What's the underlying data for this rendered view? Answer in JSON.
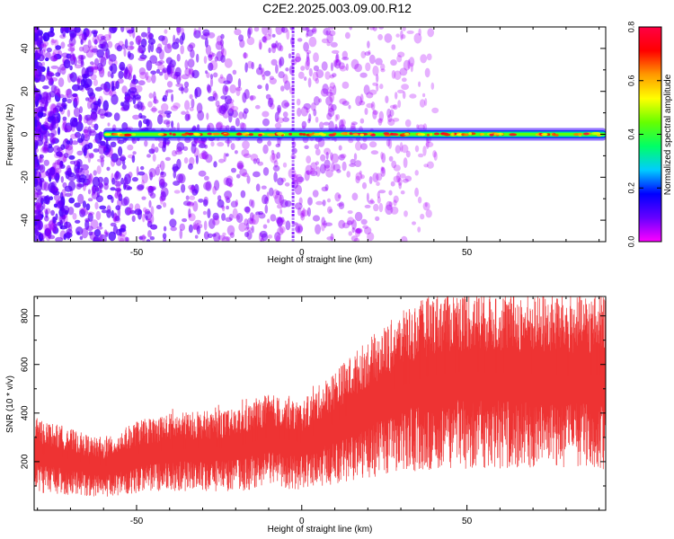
{
  "title": "C2E2.2025.003.09.00.R12",
  "chart_data": [
    {
      "type": "heatmap",
      "xlabel": "Height of straight line (km)",
      "ylabel": "Frequency (Hz)",
      "xlim": [
        -81,
        92
      ],
      "ylim": [
        -50,
        50
      ],
      "xticks": [
        -50,
        0,
        50
      ],
      "yticks": [
        -40,
        -20,
        0,
        20,
        40
      ],
      "grid": false,
      "ridge_frequency_hz": 0,
      "ridge_x_range": [
        -60,
        92
      ],
      "colorbar": {
        "label": "Normalized spectral amplitude",
        "range": [
          0,
          0.8
        ],
        "ticks": [
          0.0,
          0.2,
          0.4,
          0.6,
          0.8
        ],
        "colors": [
          "#ff00ff",
          "#6600ff",
          "#0000ff",
          "#00ccff",
          "#00ff66",
          "#66ff00",
          "#ffff00",
          "#ff9900",
          "#ff0000",
          "#ff0044"
        ]
      }
    },
    {
      "type": "line",
      "xlabel": "Height of straight line (km)",
      "ylabel": "SNR (10 * v/v)",
      "xlim": [
        -81,
        92
      ],
      "ylim": [
        0,
        880
      ],
      "xticks": [
        -50,
        0,
        50
      ],
      "yticks": [
        200,
        400,
        600,
        800
      ],
      "grid": false,
      "line_color": "#ee3333",
      "series": [
        {
          "x": [
            -81,
            -70,
            -60,
            -50,
            -40,
            -30,
            -20,
            -10,
            0,
            10,
            20,
            30,
            40,
            50,
            60,
            70,
            80,
            92
          ],
          "values": [
            240,
            210,
            180,
            230,
            250,
            255,
            260,
            300,
            280,
            360,
            440,
            510,
            560,
            570,
            565,
            560,
            555,
            560
          ]
        }
      ]
    }
  ]
}
